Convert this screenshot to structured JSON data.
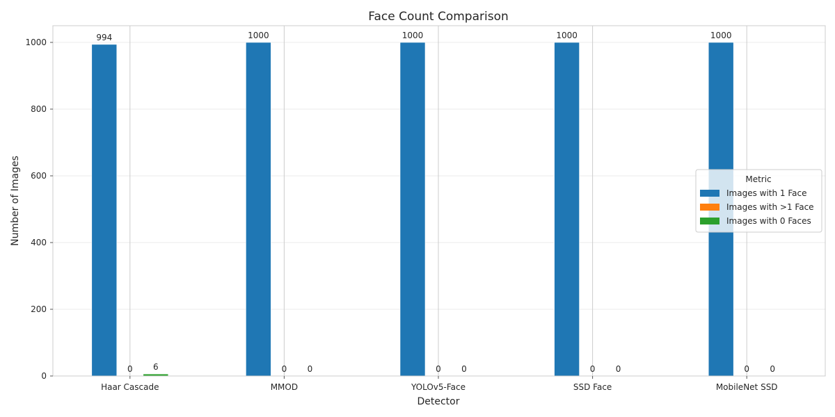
{
  "chart_data": {
    "type": "bar",
    "title": "Face Count Comparison",
    "xlabel": "Detector",
    "ylabel": "Number of Images",
    "categories": [
      "Haar Cascade",
      "MMOD",
      "YOLOv5-Face",
      "SSD Face",
      "MobileNet SSD"
    ],
    "series": [
      {
        "name": "Images with 1 Face",
        "values": [
          994,
          1000,
          1000,
          1000,
          1000
        ],
        "color": "#1f77b4"
      },
      {
        "name": "Images with >1 Face",
        "values": [
          0,
          0,
          0,
          0,
          0
        ],
        "color": "#ff7f0e"
      },
      {
        "name": "Images with 0 Faces",
        "values": [
          6,
          0,
          0,
          0,
          0
        ],
        "color": "#2ca02c"
      }
    ],
    "data_labels": [
      [
        "994",
        "0",
        "6"
      ],
      [
        "1000",
        "0",
        "0"
      ],
      [
        "1000",
        "0",
        "0"
      ],
      [
        "1000",
        "0",
        "0"
      ],
      [
        "1000",
        "0",
        "0"
      ]
    ],
    "ylim": [
      0,
      1050
    ],
    "yticks": [
      0,
      200,
      400,
      600,
      800,
      1000
    ],
    "grid": true,
    "legend": {
      "title": "Metric",
      "placement": "center-right"
    }
  }
}
